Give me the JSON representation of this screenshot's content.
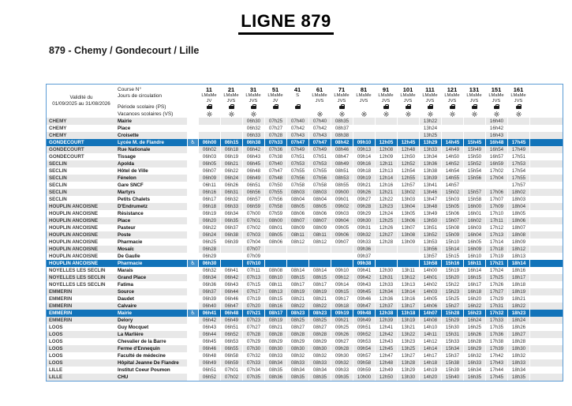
{
  "page": {
    "title": "LIGNE 879",
    "subtitle": "879 - Chemy / Gondecourt / Lille"
  },
  "colors": {
    "highlight_blue": "#1173b9",
    "wheelchair_box_blue": "#4190cb",
    "row_grey": "#e8e8e8",
    "table_border_blue": "#5b9bd5",
    "title_black": "#000000"
  },
  "icons": {
    "ps_icon": "school-bag-icon",
    "vs_icon": "sun-icon",
    "wheelchair_glyph": "♿"
  },
  "table": {
    "validity_line1": "Validité du",
    "validity_line2": "01/09/2025 au 31/08/2026",
    "header_labels": {
      "course": "Course N°",
      "days": "Jours de circulation",
      "ps": "Période scolaire (PS)",
      "vs": "Vacances scolaires (VS)"
    },
    "columns": [
      {
        "course": "11",
        "days": [
          "LMaMe",
          "JV"
        ],
        "ps": true,
        "vs": true
      },
      {
        "course": "21",
        "days": [
          "LMaMe",
          "JVS"
        ],
        "ps": true,
        "vs": true
      },
      {
        "course": "31",
        "days": [
          "LMaMe",
          "JVS"
        ],
        "ps": true,
        "vs": true
      },
      {
        "course": "51",
        "days": [
          "LMaMe",
          "JV"
        ],
        "ps": true,
        "vs": false
      },
      {
        "course": "41",
        "days": [
          "S",
          ""
        ],
        "ps": true,
        "vs": false
      },
      {
        "course": "61",
        "days": [
          "LMaMe",
          "JVS"
        ],
        "ps": false,
        "vs": true
      },
      {
        "course": "71",
        "days": [
          "LMaMe",
          "JVS"
        ],
        "ps": true,
        "vs": true
      },
      {
        "course": "81",
        "days": [
          "LMaMe",
          "JVS"
        ],
        "ps": false,
        "vs": true
      },
      {
        "course": "91",
        "days": [
          "LMaMe",
          "JVS"
        ],
        "ps": true,
        "vs": true
      },
      {
        "course": "101",
        "days": [
          "LMaMe",
          "JVS"
        ],
        "ps": true,
        "vs": true
      },
      {
        "course": "111",
        "days": [
          "LMaMe",
          "JVS"
        ],
        "ps": true,
        "vs": true
      },
      {
        "course": "121",
        "days": [
          "LMaMe",
          "JVS"
        ],
        "ps": true,
        "vs": true
      },
      {
        "course": "131",
        "days": [
          "LMaMe",
          "JVS"
        ],
        "ps": true,
        "vs": true
      },
      {
        "course": "151",
        "days": [
          "LMaMe",
          "JVS"
        ],
        "ps": true,
        "vs": true
      },
      {
        "course": "161",
        "days": [
          "LMaMe",
          "JVS"
        ],
        "ps": true,
        "vs": true
      }
    ],
    "rows": [
      {
        "c": "CHEMY",
        "s": "Mairie",
        "a": false,
        "h": false,
        "t": [
          "",
          "",
          "06h30",
          "07h25",
          "07h40",
          "07h40",
          "08h35",
          "",
          "",
          "",
          "13h22",
          "",
          "",
          "16h40",
          ""
        ]
      },
      {
        "c": "CHEMY",
        "s": "Place",
        "a": false,
        "h": false,
        "t": [
          "",
          "",
          "06h32",
          "07h27",
          "07h42",
          "07h42",
          "08h37",
          "",
          "",
          "",
          "13h24",
          "",
          "",
          "16h42",
          ""
        ]
      },
      {
        "c": "CHEMY",
        "s": "Croisette",
        "a": false,
        "h": false,
        "t": [
          "",
          "",
          "06h33",
          "07h28",
          "07h43",
          "07h43",
          "08h38",
          "",
          "",
          "",
          "13h25",
          "",
          "",
          "16h43",
          ""
        ]
      },
      {
        "c": "GONDECOURT",
        "s": "Lycée M. de Flandre",
        "a": true,
        "h": true,
        "t": [
          "06h00",
          "06h15",
          "06h38",
          "07h33",
          "07h47",
          "07h47",
          "08h42",
          "09h10",
          "12h05",
          "12h45",
          "13h29",
          "14h45",
          "15h45",
          "16h48",
          "17h45"
        ]
      },
      {
        "c": "GONDECOURT",
        "s": "Rue Nationale",
        "a": false,
        "h": false,
        "t": [
          "06h02",
          "06h18",
          "06h42",
          "07h36",
          "07h49",
          "07h49",
          "08h46",
          "09h13",
          "12h08",
          "12h48",
          "13h33",
          "14h49",
          "15h49",
          "16h54",
          "17h49"
        ]
      },
      {
        "c": "GONDECOURT",
        "s": "Tissage",
        "a": false,
        "h": false,
        "t": [
          "06h03",
          "06h19",
          "06h43",
          "07h38",
          "07h51",
          "07h51",
          "08h47",
          "09h14",
          "12h09",
          "12h50",
          "13h34",
          "14h50",
          "15h50",
          "16h57",
          "17h51"
        ]
      },
      {
        "c": "SECLIN",
        "s": "Apolda",
        "a": false,
        "h": false,
        "t": [
          "06h05",
          "06h21",
          "06h45",
          "07h40",
          "07h53",
          "07h53",
          "08h49",
          "09h16",
          "12h11",
          "12h52",
          "13h36",
          "14h52",
          "15h52",
          "16h59",
          "17h53"
        ]
      },
      {
        "c": "SECLIN",
        "s": "Hôtel de Ville",
        "a": false,
        "h": false,
        "t": [
          "06h07",
          "06h22",
          "06h48",
          "07h47",
          "07h55",
          "07h55",
          "08h51",
          "09h18",
          "12h13",
          "12h54",
          "13h38",
          "14h54",
          "15h54",
          "17h02",
          "17h54"
        ]
      },
      {
        "c": "SECLIN",
        "s": "Fénelon",
        "a": false,
        "h": false,
        "t": [
          "06h09",
          "06h24",
          "06h49",
          "07h48",
          "07h56",
          "07h56",
          "08h53",
          "09h19",
          "12h14",
          "12h55",
          "13h39",
          "14h55",
          "15h56",
          "17h04",
          "17h55"
        ]
      },
      {
        "c": "SECLIN",
        "s": "Gare SNCF",
        "a": false,
        "h": false,
        "t": [
          "06h11",
          "06h26",
          "06h51",
          "07h50",
          "07h58",
          "07h58",
          "08h55",
          "09h21",
          "12h16",
          "12h57",
          "13h41",
          "14h57",
          "",
          "",
          "17h57"
        ]
      },
      {
        "c": "SECLIN",
        "s": "Martyrs",
        "a": false,
        "h": false,
        "t": [
          "06h16",
          "06h31",
          "06h56",
          "07h55",
          "08h03",
          "08h03",
          "09h00",
          "09h26",
          "12h21",
          "13h02",
          "13h46",
          "15h02",
          "15h57",
          "17h06",
          "18h02"
        ]
      },
      {
        "c": "SECLIN",
        "s": "Petits Chalets",
        "a": false,
        "h": false,
        "t": [
          "06h17",
          "06h32",
          "06h57",
          "07h56",
          "08h04",
          "08h04",
          "09h01",
          "09h27",
          "12h22",
          "13h03",
          "13h47",
          "15h03",
          "15h58",
          "17h07",
          "18h03"
        ]
      },
      {
        "c": "HOUPLIN ANCOISNE",
        "s": "D'Endrumetz",
        "a": false,
        "h": false,
        "t": [
          "06h18",
          "06h33",
          "06h59",
          "07h58",
          "08h05",
          "08h05",
          "09h02",
          "09h28",
          "12h23",
          "13h04",
          "13h48",
          "15h05",
          "16h00",
          "17h09",
          "18h04"
        ]
      },
      {
        "c": "HOUPLIN ANCOISNE",
        "s": "Résistance",
        "a": false,
        "h": false,
        "t": [
          "06h19",
          "06h34",
          "07h00",
          "07h59",
          "08h06",
          "08h06",
          "09h03",
          "09h29",
          "12h24",
          "13h05",
          "13h49",
          "15h06",
          "16h01",
          "17h10",
          "18h05"
        ]
      },
      {
        "c": "HOUPLIN ANCOISNE",
        "s": "Place",
        "a": false,
        "h": false,
        "t": [
          "06h20",
          "06h35",
          "07h01",
          "08h00",
          "08h07",
          "08h07",
          "09h04",
          "09h30",
          "12h25",
          "13h06",
          "13h50",
          "15h07",
          "16h02",
          "17h11",
          "18h06"
        ]
      },
      {
        "c": "HOUPLIN ANCOISNE",
        "s": "Pasteur",
        "a": false,
        "h": false,
        "t": [
          "06h22",
          "06h37",
          "07h02",
          "08h01",
          "08h09",
          "08h09",
          "09h05",
          "09h31",
          "12h26",
          "13h07",
          "13h51",
          "15h08",
          "16h03",
          "17h12",
          "18h07"
        ]
      },
      {
        "c": "HOUPLIN ANCOISNE",
        "s": "Poste",
        "a": false,
        "h": false,
        "t": [
          "06h24",
          "06h38",
          "07h03",
          "08h05",
          "08h11",
          "08h11",
          "09h06",
          "09h32",
          "12h27",
          "13h08",
          "13h52",
          "15h09",
          "16h04",
          "17h13",
          "18h08"
        ]
      },
      {
        "c": "HOUPLIN ANCOISNE",
        "s": "Pharmacie",
        "a": false,
        "h": false,
        "t": [
          "06h25",
          "06h39",
          "07h04",
          "08h06",
          "08h12",
          "08h12",
          "09h07",
          "09h33",
          "12h28",
          "13h09",
          "13h53",
          "15h10",
          "16h05",
          "17h14",
          "18h09"
        ]
      },
      {
        "c": "HOUPLIN ANCOISNE",
        "s": "Mosaïc",
        "a": false,
        "h": false,
        "t": [
          "06h28",
          "",
          "07h07",
          "",
          "",
          "",
          "",
          "09h36",
          "",
          "",
          "13h56",
          "15h14",
          "16h09",
          "17h18",
          "18h12"
        ]
      },
      {
        "c": "HOUPLIN ANCOISNE",
        "s": "De Gaulle",
        "a": false,
        "h": false,
        "t": [
          "06h29",
          "",
          "07h09",
          "",
          "",
          "",
          "",
          "09h37",
          "",
          "",
          "13h57",
          "15h15",
          "16h10",
          "17h19",
          "18h13"
        ]
      },
      {
        "c": "HOUPLIN ANCOISNE",
        "s": "Pharmacie",
        "a": true,
        "h": true,
        "t": [
          "06h30",
          "",
          "07h10",
          "",
          "",
          "",
          "",
          "09h38",
          "",
          "",
          "13h58",
          "15h16",
          "16h11",
          "17h21",
          "18h14"
        ]
      },
      {
        "c": "NOYELLES LES SECLIN",
        "s": "Marais",
        "a": false,
        "h": false,
        "t": [
          "06h32",
          "06h41",
          "07h11",
          "08h08",
          "08h14",
          "08h14",
          "09h10",
          "09h41",
          "12h30",
          "13h11",
          "14h00",
          "15h19",
          "16h14",
          "17h24",
          "18h16"
        ]
      },
      {
        "c": "NOYELLES LES SECLIN",
        "s": "Grand Place",
        "a": false,
        "h": false,
        "t": [
          "06h34",
          "06h42",
          "07h13",
          "08h10",
          "08h15",
          "08h15",
          "09h12",
          "09h42",
          "12h31",
          "13h12",
          "14h01",
          "15h20",
          "16h15",
          "17h25",
          "18h17"
        ]
      },
      {
        "c": "NOYELLES LES SECLIN",
        "s": "Fatima",
        "a": false,
        "h": false,
        "t": [
          "06h36",
          "06h43",
          "07h15",
          "08h11",
          "08h17",
          "08h17",
          "09h14",
          "09h43",
          "12h33",
          "13h13",
          "14h02",
          "15h22",
          "16h17",
          "17h26",
          "18h18"
        ]
      },
      {
        "c": "EMMERIN",
        "s": "Source",
        "a": false,
        "h": false,
        "t": [
          "06h37",
          "06h44",
          "07h17",
          "08h13",
          "08h19",
          "08h19",
          "09h15",
          "09h45",
          "12h34",
          "13h14",
          "14h03",
          "15h23",
          "16h18",
          "17h27",
          "18h19"
        ]
      },
      {
        "c": "EMMERIN",
        "s": "Daudet",
        "a": false,
        "h": false,
        "t": [
          "06h39",
          "06h46",
          "07h19",
          "08h15",
          "08h21",
          "08h21",
          "09h17",
          "09h46",
          "12h36",
          "13h16",
          "14h05",
          "15h25",
          "16h20",
          "17h29",
          "18h21"
        ]
      },
      {
        "c": "EMMERIN",
        "s": "Calvaire",
        "a": false,
        "h": false,
        "t": [
          "06h40",
          "06h47",
          "07h20",
          "08h16",
          "08h22",
          "08h22",
          "09h18",
          "09h47",
          "12h37",
          "13h17",
          "14h06",
          "15h27",
          "16h22",
          "17h31",
          "18h22"
        ]
      },
      {
        "c": "EMMERIN",
        "s": "Mairie",
        "a": true,
        "h": true,
        "t": [
          "06h41",
          "06h48",
          "07h21",
          "08h17",
          "08h23",
          "08h23",
          "09h19",
          "09h48",
          "12h38",
          "13h18",
          "14h07",
          "15h28",
          "16h23",
          "17h32",
          "18h23"
        ]
      },
      {
        "c": "EMMERIN",
        "s": "Delory",
        "a": false,
        "h": false,
        "t": [
          "06h42",
          "06h49",
          "07h23",
          "08h19",
          "08h25",
          "08h25",
          "09h21",
          "09h49",
          "12h39",
          "13h19",
          "14h08",
          "15h29",
          "16h24",
          "17h33",
          "18h24"
        ]
      },
      {
        "c": "LOOS",
        "s": "Guy Mocquet",
        "a": false,
        "h": false,
        "t": [
          "06h43",
          "06h51",
          "07h27",
          "08h21",
          "08h27",
          "08h27",
          "09h25",
          "09h51",
          "12h41",
          "13h21",
          "14h10",
          "15h30",
          "16h25",
          "17h35",
          "18h26"
        ]
      },
      {
        "c": "LOOS",
        "s": "La Marlière",
        "a": false,
        "h": false,
        "t": [
          "06h44",
          "06h52",
          "07h28",
          "08h28",
          "08h28",
          "08h28",
          "09h26",
          "09h52",
          "12h42",
          "13h22",
          "14h11",
          "15h31",
          "16h26",
          "17h36",
          "18h27"
        ]
      },
      {
        "c": "LOOS",
        "s": "Chevalier de la Barre",
        "a": false,
        "h": false,
        "t": [
          "06h45",
          "06h53",
          "07h29",
          "08h29",
          "08h29",
          "08h29",
          "09h27",
          "09h53",
          "12h43",
          "13h23",
          "14h12",
          "15h33",
          "16h28",
          "17h38",
          "18h28"
        ]
      },
      {
        "c": "LOOS",
        "s": "Ferme d'Ennequin",
        "a": false,
        "h": false,
        "t": [
          "06h46",
          "06h55",
          "07h30",
          "08h30",
          "08h30",
          "08h30",
          "09h28",
          "09h54",
          "12h45",
          "13h25",
          "14h14",
          "15h34",
          "16h29",
          "17h39",
          "18h30"
        ]
      },
      {
        "c": "LOOS",
        "s": "Faculté de médecine",
        "a": false,
        "h": false,
        "t": [
          "06h48",
          "06h58",
          "07h32",
          "08h33",
          "08h32",
          "08h32",
          "09h30",
          "09h57",
          "12h47",
          "13h27",
          "14h17",
          "15h37",
          "16h32",
          "17h42",
          "18h32"
        ]
      },
      {
        "c": "LOOS",
        "s": "Hôpital Jeanne De Flandre",
        "a": false,
        "h": false,
        "t": [
          "06h49",
          "06h59",
          "07h33",
          "08h34",
          "08h33",
          "08h33",
          "09h32",
          "09h58",
          "12h48",
          "13h28",
          "14h18",
          "15h38",
          "16h33",
          "17h43",
          "18h33"
        ]
      },
      {
        "c": "LILLE",
        "s": "Institut Coeur Poumon",
        "a": false,
        "h": false,
        "t": [
          "06h51",
          "07h01",
          "07h34",
          "08h35",
          "08h34",
          "08h34",
          "09h33",
          "09h59",
          "12h49",
          "13h29",
          "14h19",
          "15h39",
          "16h34",
          "17h44",
          "18h34"
        ]
      },
      {
        "c": "LILLE",
        "s": "CHU",
        "a": false,
        "h": false,
        "t": [
          "06h52",
          "07h02",
          "07h35",
          "08h36",
          "08h35",
          "08h35",
          "09h35",
          "10h00",
          "12h50",
          "13h30",
          "14h20",
          "15h40",
          "16h35",
          "17h45",
          "18h35"
        ]
      }
    ]
  }
}
